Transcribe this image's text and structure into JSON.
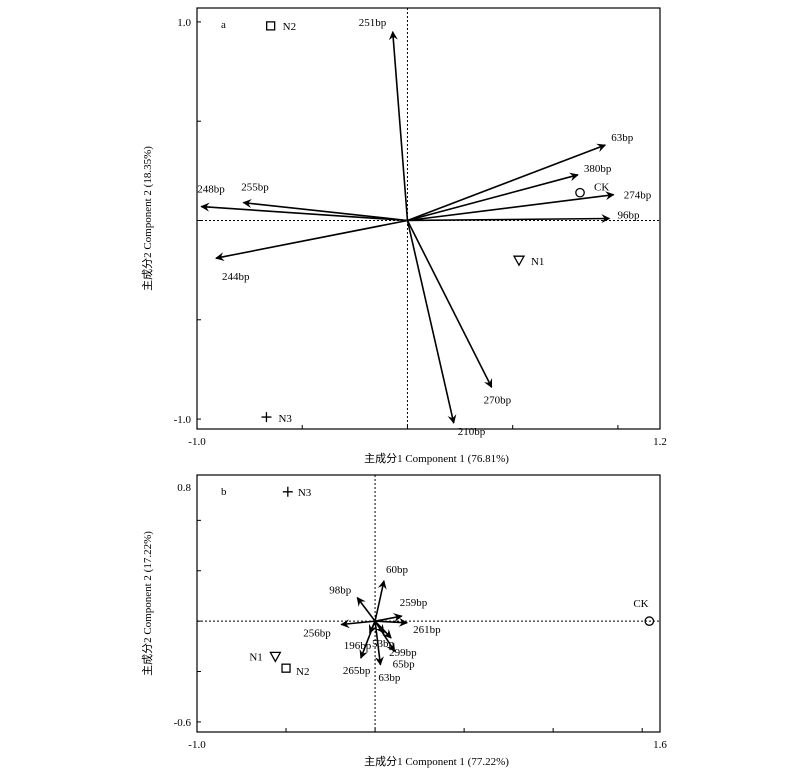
{
  "chart_data": [
    {
      "type": "scatter",
      "panel_label": "a",
      "xlabel": "主成分1 Component 1 (76.81%)",
      "ylabel": "主成分2 Component 2 (18.35%)",
      "xlim": [
        -1.0,
        1.2
      ],
      "ylim": [
        -1.05,
        1.07
      ],
      "x_tick_labels": [
        {
          "value": -1.0,
          "label": "-1.0"
        },
        {
          "value": 1.2,
          "label": "1.2"
        }
      ],
      "y_tick_labels": [
        {
          "value": 1.0,
          "label": "1.0"
        },
        {
          "value": -1.0,
          "label": "-1.0"
        }
      ],
      "x_ticks": [
        -1.0,
        -0.5,
        0,
        0.5,
        1.0
      ],
      "y_ticks": [
        -1.0,
        -0.5,
        0,
        0.5,
        1.0
      ],
      "zero_lines": true,
      "vectors": [
        {
          "name": "251bp",
          "x": -0.07,
          "y": 0.95
        },
        {
          "name": "63bp",
          "x": 0.94,
          "y": 0.38
        },
        {
          "name": "380bp",
          "x": 0.81,
          "y": 0.23
        },
        {
          "name": "274bp",
          "x": 0.98,
          "y": 0.13
        },
        {
          "name": "96bp",
          "x": 0.96,
          "y": 0.01
        },
        {
          "name": "248bp",
          "x": -0.98,
          "y": 0.07
        },
        {
          "name": "255bp",
          "x": -0.78,
          "y": 0.09
        },
        {
          "name": "244bp",
          "x": -0.91,
          "y": -0.19
        },
        {
          "name": "270bp",
          "x": 0.4,
          "y": -0.84
        },
        {
          "name": "210bp",
          "x": 0.22,
          "y": -1.02
        }
      ],
      "points": [
        {
          "name": "N2",
          "x": -0.65,
          "y": 0.98,
          "symbol": "square"
        },
        {
          "name": "CK",
          "x": 0.82,
          "y": 0.14,
          "symbol": "circle"
        },
        {
          "name": "N1",
          "x": 0.53,
          "y": -0.2,
          "symbol": "triangle-down"
        },
        {
          "name": "N3",
          "x": -0.67,
          "y": -0.99,
          "symbol": "plus"
        }
      ]
    },
    {
      "type": "scatter",
      "panel_label": "b",
      "xlabel": "主成分1 Component 1 (77.22%)",
      "ylabel": "主成分2 Component 2 (17.22%)",
      "xlim": [
        -1.0,
        1.6
      ],
      "ylim": [
        -0.66,
        0.87
      ],
      "x_tick_labels": [
        {
          "value": -1.0,
          "label": "-1.0"
        },
        {
          "value": 1.6,
          "label": "1.6"
        }
      ],
      "y_tick_labels": [
        {
          "value": 0.8,
          "label": "0.8"
        },
        {
          "value": -0.6,
          "label": "-0.6"
        }
      ],
      "x_ticks": [
        -1.0,
        -0.5,
        0,
        0.5,
        1.0,
        1.5
      ],
      "y_ticks": [
        -0.6,
        -0.3,
        0,
        0.3,
        0.6
      ],
      "zero_lines": true,
      "vectors": [
        {
          "name": "60bp",
          "x": 0.05,
          "y": 0.24
        },
        {
          "name": "98bp",
          "x": -0.1,
          "y": 0.14
        },
        {
          "name": "259bp",
          "x": 0.15,
          "y": 0.03
        },
        {
          "name": "261bp",
          "x": 0.18,
          "y": -0.01
        },
        {
          "name": "256bp",
          "x": -0.19,
          "y": -0.02
        },
        {
          "name": "196bp",
          "x": -0.03,
          "y": -0.07
        },
        {
          "name": "53bp",
          "x": 0.05,
          "y": -0.07
        },
        {
          "name": "299bp",
          "x": 0.09,
          "y": -0.1
        },
        {
          "name": "65bp",
          "x": 0.11,
          "y": -0.18
        },
        {
          "name": "265bp",
          "x": -0.08,
          "y": -0.22
        },
        {
          "name": "63bp",
          "x": 0.03,
          "y": -0.26
        }
      ],
      "points": [
        {
          "name": "N3",
          "x": -0.49,
          "y": 0.77,
          "symbol": "plus"
        },
        {
          "name": "CK",
          "x": 1.54,
          "y": 0.0,
          "symbol": "circle"
        },
        {
          "name": "N1",
          "x": -0.56,
          "y": -0.21,
          "symbol": "triangle-down"
        },
        {
          "name": "N2",
          "x": -0.5,
          "y": -0.28,
          "symbol": "square"
        }
      ]
    }
  ]
}
